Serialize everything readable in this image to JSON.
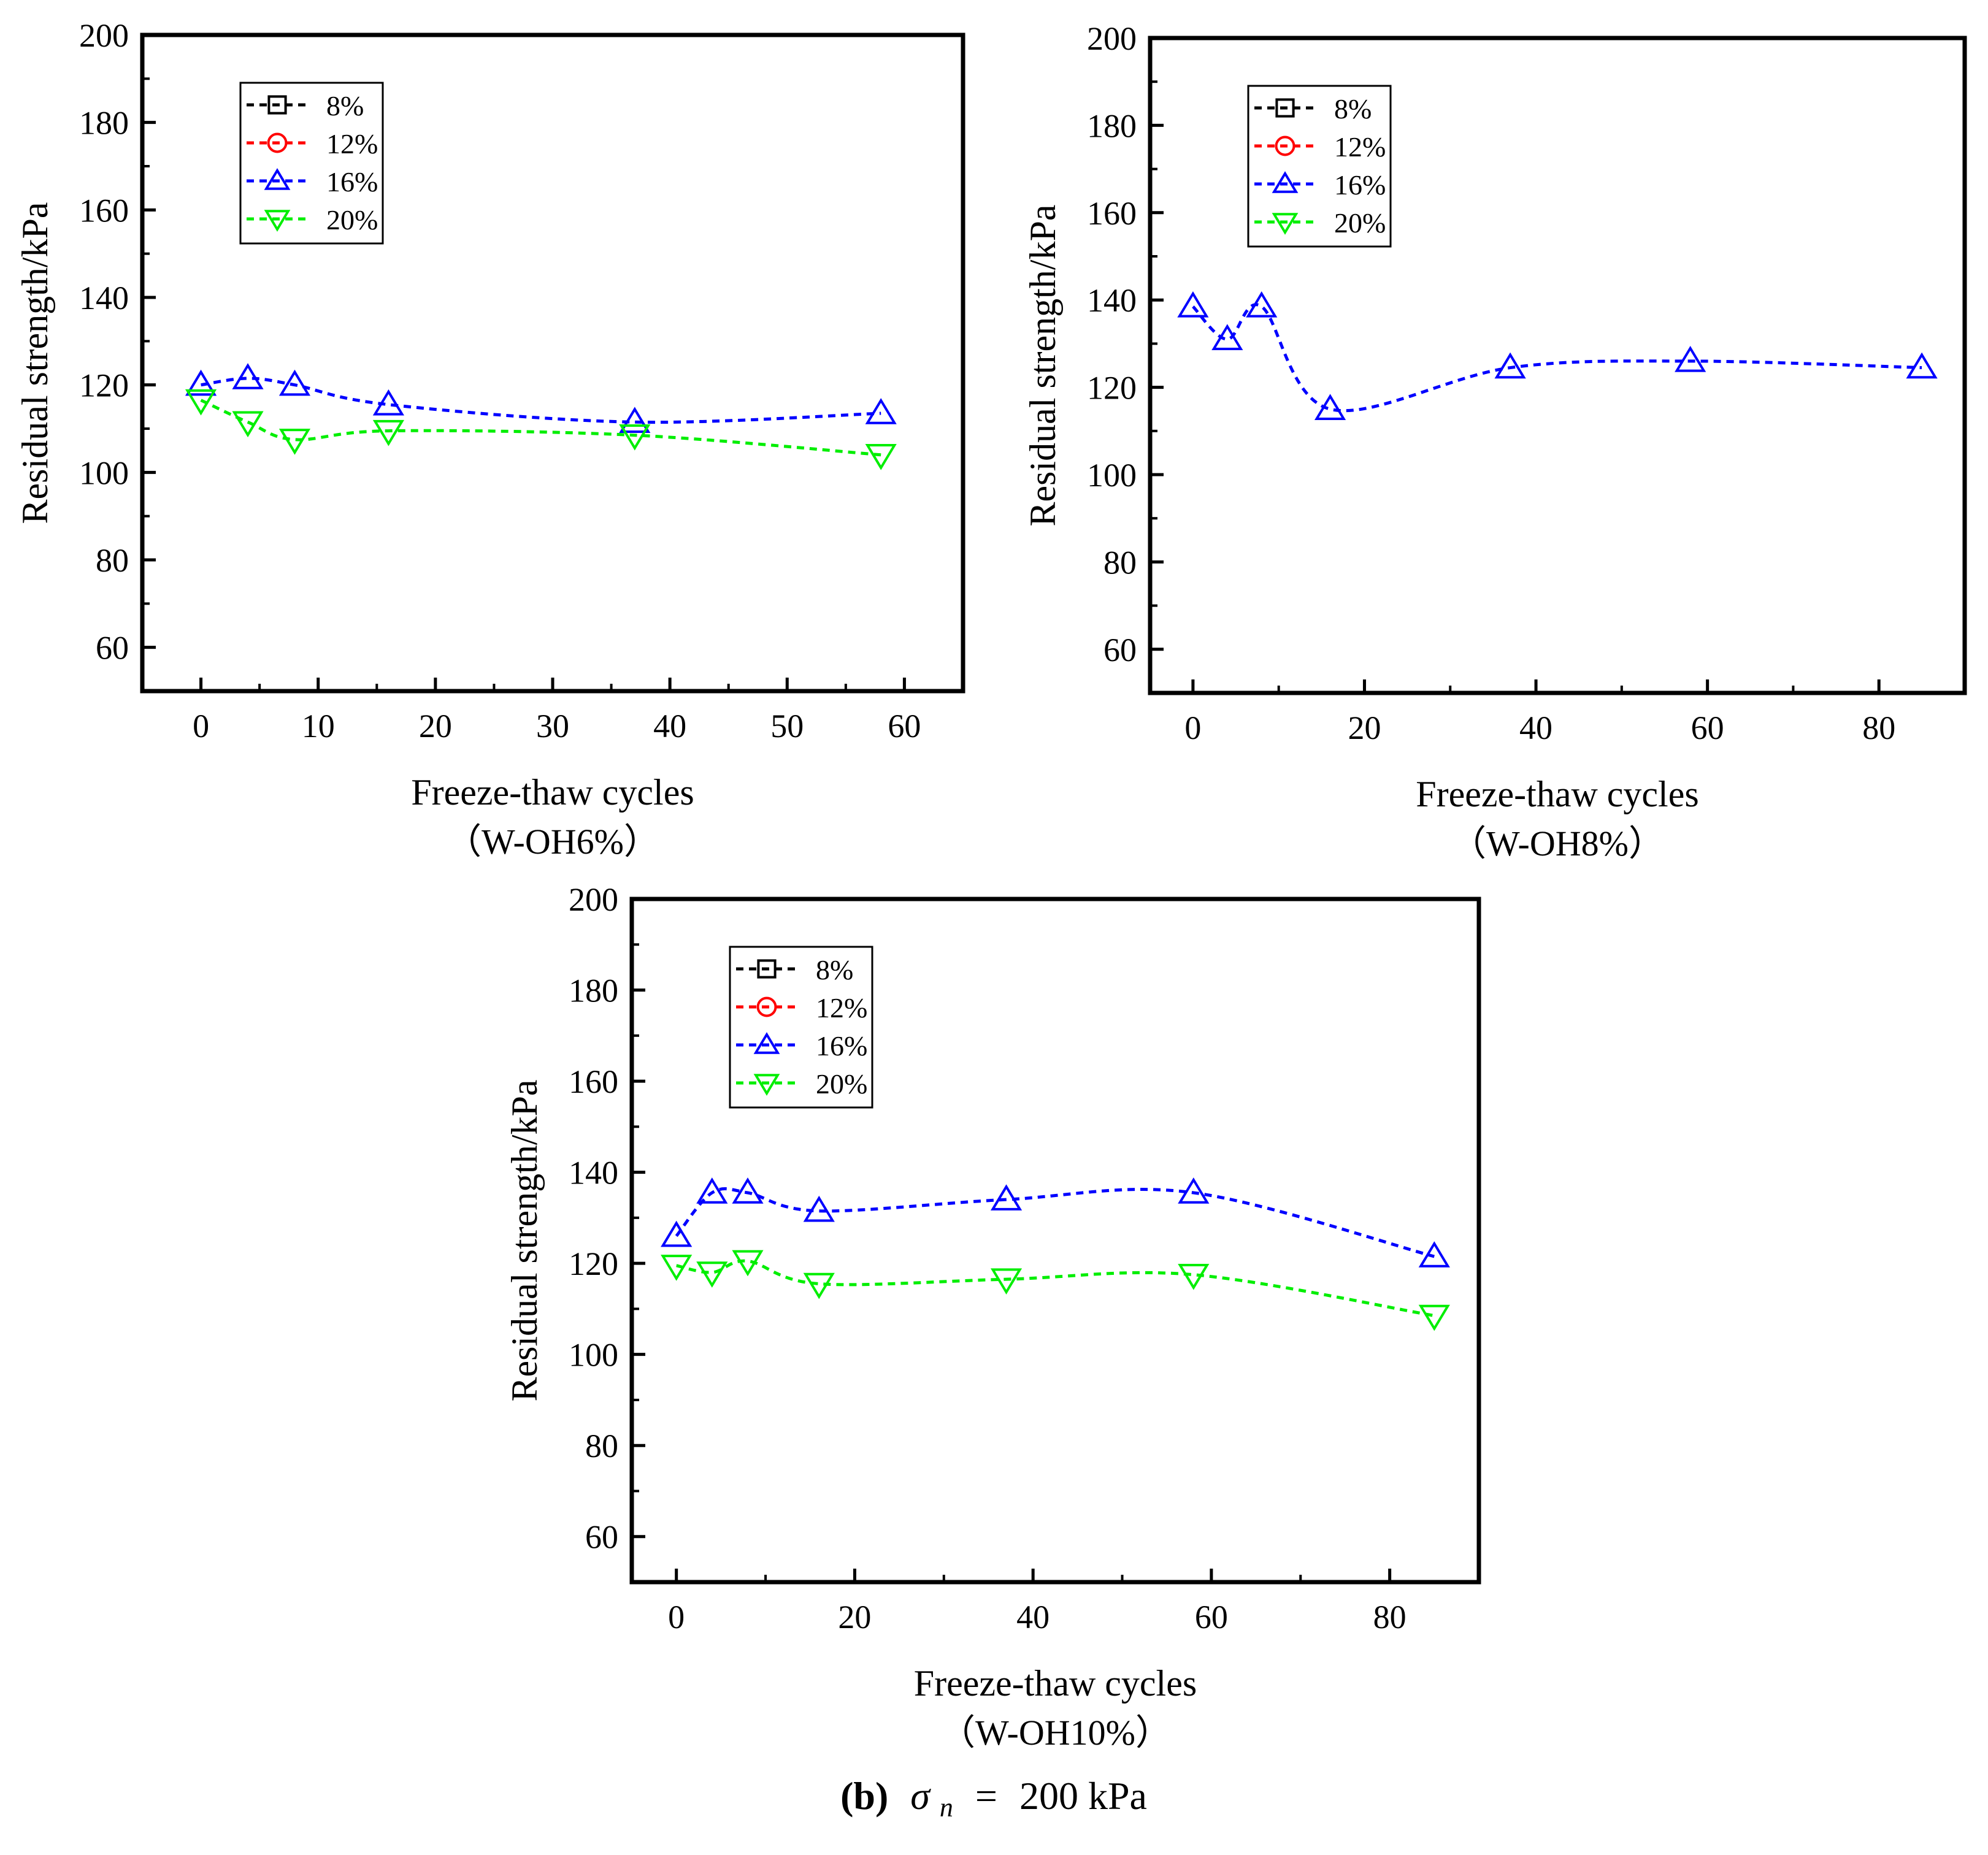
{
  "caption": {
    "label": "(b)",
    "symbol": "σ",
    "subscript": "n",
    "equals": "=",
    "value": "200 kPa"
  },
  "chart_data": [
    {
      "type": "line",
      "xlabel": "Freeze-thaw cycles",
      "subtitle": "（W-OH6%）",
      "ylabel": "Residual strength/kPa",
      "xlim": [
        -5,
        65
      ],
      "ylim": [
        50,
        200
      ],
      "xticks": [
        0,
        10,
        20,
        30,
        40,
        50,
        60
      ],
      "yticks": [
        60,
        80,
        100,
        120,
        140,
        160,
        180,
        200
      ],
      "legend_position": "top-left",
      "grid": false,
      "series": [
        {
          "name": "8%",
          "marker": "square",
          "color": "#000000",
          "x": [],
          "y": []
        },
        {
          "name": "12%",
          "marker": "circle",
          "color": "#ff0000",
          "x": [],
          "y": []
        },
        {
          "name": "16%",
          "marker": "triangle-up",
          "color": "#0000ff",
          "x": [
            0,
            4,
            8,
            16,
            37,
            58
          ],
          "y": [
            120,
            121.5,
            120,
            115.5,
            111.5,
            113.5
          ]
        },
        {
          "name": "20%",
          "marker": "triangle-down",
          "color": "#00ee00",
          "x": [
            0,
            4,
            8,
            16,
            37,
            58
          ],
          "y": [
            116.5,
            111.5,
            107.5,
            109.5,
            108.5,
            104
          ]
        }
      ]
    },
    {
      "type": "line",
      "xlabel": "Freeze-thaw cycles",
      "subtitle": "（W-OH8%）",
      "ylabel": "Residual strength/kPa",
      "xlim": [
        -5,
        90
      ],
      "ylim": [
        50,
        200
      ],
      "xticks": [
        0,
        20,
        40,
        60,
        80
      ],
      "yticks": [
        60,
        80,
        100,
        120,
        140,
        160,
        180,
        200
      ],
      "legend_position": "top-left",
      "grid": false,
      "series": [
        {
          "name": "8%",
          "marker": "square",
          "color": "#000000",
          "x": [],
          "y": []
        },
        {
          "name": "12%",
          "marker": "circle",
          "color": "#ff0000",
          "x": [],
          "y": []
        },
        {
          "name": "16%",
          "marker": "triangle-up",
          "color": "#0000ff",
          "x": [
            0,
            4,
            8,
            16,
            37,
            58,
            85
          ],
          "y": [
            138.5,
            131,
            138.5,
            115,
            124.5,
            126,
            124.5
          ]
        },
        {
          "name": "20%",
          "marker": "triangle-down",
          "color": "#00ee00",
          "x": [],
          "y": []
        }
      ]
    },
    {
      "type": "line",
      "xlabel": "Freeze-thaw cycles",
      "subtitle": "（W-OH10%）",
      "ylabel": "Residual strength/kPa",
      "xlim": [
        -5,
        90
      ],
      "ylim": [
        50,
        200
      ],
      "xticks": [
        0,
        20,
        40,
        60,
        80
      ],
      "yticks": [
        60,
        80,
        100,
        120,
        140,
        160,
        180,
        200
      ],
      "legend_position": "top-left",
      "grid": false,
      "series": [
        {
          "name": "8%",
          "marker": "square",
          "color": "#000000",
          "x": [],
          "y": []
        },
        {
          "name": "12%",
          "marker": "circle",
          "color": "#ff0000",
          "x": [],
          "y": []
        },
        {
          "name": "16%",
          "marker": "triangle-up",
          "color": "#0000ff",
          "x": [
            0,
            4,
            8,
            16,
            37,
            58,
            85
          ],
          "y": [
            126,
            135.5,
            135.5,
            131.5,
            134,
            135.5,
            121.5
          ]
        },
        {
          "name": "20%",
          "marker": "triangle-down",
          "color": "#00ee00",
          "x": [
            0,
            4,
            8,
            16,
            37,
            58,
            85
          ],
          "y": [
            119.5,
            118,
            120.5,
            115.5,
            116.5,
            117.5,
            108.5
          ]
        }
      ]
    }
  ]
}
